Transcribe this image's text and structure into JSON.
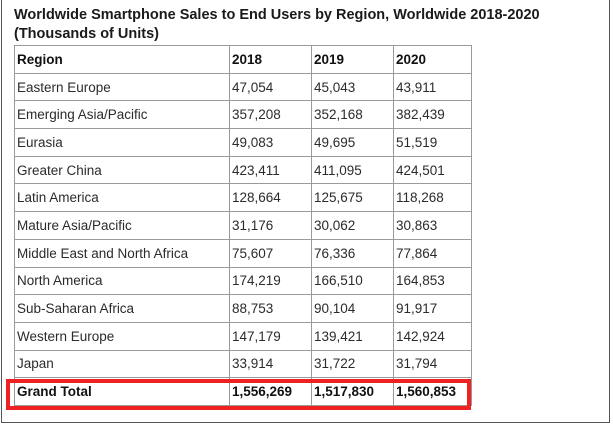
{
  "chart_data": {
    "type": "table",
    "title": "Worldwide Smartphone Sales to End Users by Region, Worldwide 2018-2020 (Thousands of Units)",
    "columns": [
      "Region",
      "2018",
      "2019",
      "2020"
    ],
    "rows": [
      [
        "Eastern Europe",
        "47,054",
        "45,043",
        "43,911"
      ],
      [
        "Emerging Asia/Pacific",
        "357,208",
        "352,168",
        "382,439"
      ],
      [
        "Eurasia",
        "49,083",
        "49,695",
        "51,519"
      ],
      [
        "Greater China",
        "423,411",
        "411,095",
        "424,501"
      ],
      [
        "Latin America",
        "128,664",
        "125,675",
        "118,268"
      ],
      [
        "Mature Asia/Pacific",
        "31,176",
        "30,062",
        "30,863"
      ],
      [
        "Middle East and North Africa",
        "75,607",
        "76,336",
        "77,864"
      ],
      [
        "North America",
        "174,219",
        "166,510",
        "164,853"
      ],
      [
        "Sub-Saharan Africa",
        "88,753",
        "90,104",
        "91,917"
      ],
      [
        "Western Europe",
        "147,179",
        "139,421",
        "142,924"
      ],
      [
        "Japan",
        "33,914",
        "31,722",
        "31,794"
      ]
    ],
    "total": [
      "Grand Total",
      "1,556,269",
      "1,517,830",
      "1,560,853"
    ]
  },
  "highlight": {
    "color": "#ee2222",
    "target": "Grand Total row"
  }
}
